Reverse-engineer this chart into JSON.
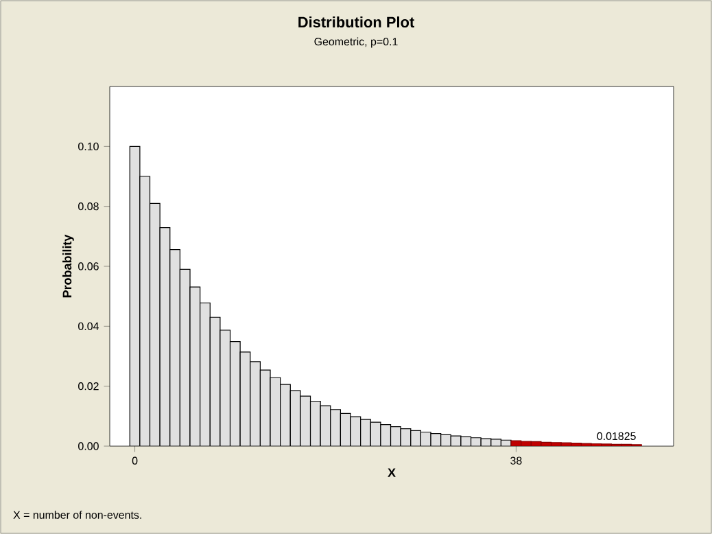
{
  "chart_data": {
    "type": "bar",
    "title": "Distribution Plot",
    "subtitle": "Geometric, p=0.1",
    "xlabel": "X",
    "ylabel": "Probability",
    "x": [
      0,
      1,
      2,
      3,
      4,
      5,
      6,
      7,
      8,
      9,
      10,
      11,
      12,
      13,
      14,
      15,
      16,
      17,
      18,
      19,
      20,
      21,
      22,
      23,
      24,
      25,
      26,
      27,
      28,
      29,
      30,
      31,
      32,
      33,
      34,
      35,
      36,
      37,
      38,
      39,
      40,
      41,
      42,
      43,
      44,
      45,
      46,
      47,
      48,
      49,
      50
    ],
    "values": [
      0.1,
      0.09,
      0.081,
      0.0729,
      0.0656,
      0.059,
      0.0531,
      0.0478,
      0.043,
      0.0387,
      0.0349,
      0.0314,
      0.0282,
      0.0254,
      0.0229,
      0.0206,
      0.0185,
      0.0167,
      0.015,
      0.0135,
      0.0122,
      0.0109,
      0.0098,
      0.0089,
      0.008,
      0.0072,
      0.0065,
      0.0058,
      0.0052,
      0.0047,
      0.0042,
      0.0038,
      0.0034,
      0.0031,
      0.0028,
      0.0025,
      0.0023,
      0.002,
      0.0018,
      0.0016,
      0.0015,
      0.0013,
      0.0012,
      0.0011,
      0.001,
      0.0009,
      0.0008,
      0.0007,
      0.0006,
      0.0006,
      0.0005
    ],
    "colors": [
      "#e0e0e0",
      "#e0e0e0",
      "#e0e0e0",
      "#e0e0e0",
      "#e0e0e0",
      "#e0e0e0",
      "#e0e0e0",
      "#e0e0e0",
      "#e0e0e0",
      "#e0e0e0",
      "#e0e0e0",
      "#e0e0e0",
      "#e0e0e0",
      "#e0e0e0",
      "#e0e0e0",
      "#e0e0e0",
      "#e0e0e0",
      "#e0e0e0",
      "#e0e0e0",
      "#e0e0e0",
      "#e0e0e0",
      "#e0e0e0",
      "#e0e0e0",
      "#e0e0e0",
      "#e0e0e0",
      "#e0e0e0",
      "#e0e0e0",
      "#e0e0e0",
      "#e0e0e0",
      "#e0e0e0",
      "#e0e0e0",
      "#e0e0e0",
      "#e0e0e0",
      "#e0e0e0",
      "#e0e0e0",
      "#e0e0e0",
      "#e0e0e0",
      "#e0e0e0",
      "#c00000",
      "#c00000",
      "#c00000",
      "#c00000",
      "#c00000",
      "#c00000",
      "#c00000",
      "#c00000",
      "#c00000",
      "#c00000",
      "#c00000",
      "#c00000",
      "#c00000"
    ],
    "xlim": [
      -2.5,
      53.7
    ],
    "xticks": [
      0,
      38
    ],
    "ylim": [
      0,
      0.12
    ],
    "yticks": [
      {
        "value": 0,
        "label": "0.00"
      },
      {
        "value": 0.02,
        "label": "0.02"
      },
      {
        "value": 0.04,
        "label": "0.04"
      },
      {
        "value": 0.06,
        "label": "0.06"
      },
      {
        "value": 0.08,
        "label": "0.08"
      },
      {
        "value": 0.1,
        "label": "0.10"
      }
    ],
    "annotations": [
      {
        "text": "0.01825",
        "x": 48,
        "y": 0.0015
      },
      "X = number of non-events."
    ]
  }
}
